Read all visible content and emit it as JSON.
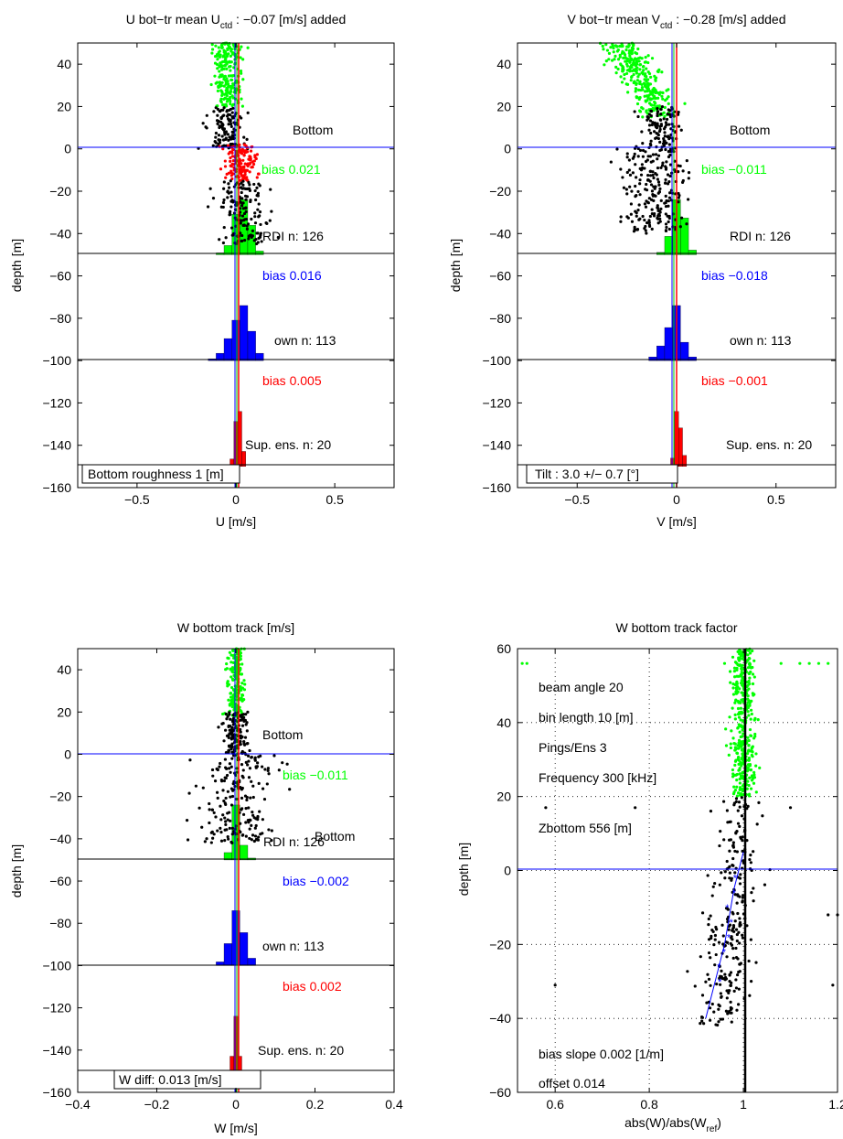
{
  "panels": [
    {
      "id": "u",
      "title_main": "U bot−tr mean U",
      "title_sub": "ctd",
      "title_rest": " : −0.07 [m/s] added",
      "xlabel": "U [m/s]",
      "ylabel": "depth [m]",
      "xlim": [
        -0.8,
        0.8
      ],
      "ylim": [
        -160,
        50
      ],
      "xticks": [
        -0.5,
        0,
        0.5
      ],
      "xticklabels": [
        "−0.5",
        "0",
        "0.5"
      ],
      "yticks": [
        40,
        20,
        0,
        -20,
        -40,
        -60,
        -80,
        -100,
        -120,
        -140,
        -160
      ],
      "yticklabels": [
        "40",
        "20",
        "0",
        "−20",
        "−40",
        "−60",
        "−80",
        "−100",
        "−120",
        "−140",
        "−160"
      ],
      "annotations": {
        "bottom": "Bottom",
        "bias_green": "bias  0.021",
        "rdi_n": "RDI n: 126",
        "bias_blue": "bias  0.016",
        "own_n": "own n: 113",
        "bias_red": "bias  0.005",
        "sup_n": "Sup. ens. n: 20",
        "box_text": "Bottom roughness  1 [m]"
      },
      "colors": {
        "green": "#00ff00",
        "blue": "#0000ff",
        "red": "#ff0000"
      }
    },
    {
      "id": "v",
      "title_main": "V bot−tr mean V",
      "title_sub": "ctd",
      "title_rest": " : −0.28 [m/s] added",
      "xlabel": "V [m/s]",
      "ylabel": "depth [m]",
      "xlim": [
        -0.8,
        0.8
      ],
      "ylim": [
        -160,
        50
      ],
      "xticks": [
        -0.5,
        0,
        0.5
      ],
      "xticklabels": [
        "−0.5",
        "0",
        "0.5"
      ],
      "yticks": [
        40,
        20,
        0,
        -20,
        -40,
        -60,
        -80,
        -100,
        -120,
        -140,
        -160
      ],
      "yticklabels": [
        "40",
        "20",
        "0",
        "−20",
        "−40",
        "−60",
        "−80",
        "−100",
        "−120",
        "−140",
        "−160"
      ],
      "annotations": {
        "bottom": "Bottom",
        "bias_green": "bias −0.011",
        "rdi_n": "RDI n: 126",
        "bias_blue": "bias −0.018",
        "own_n": "own n: 113",
        "bias_red": "bias −0.001",
        "sup_n": "Sup. ens. n: 20",
        "box_text": "Tilt : 3.0 +/− 0.7 [°]"
      }
    },
    {
      "id": "w",
      "title_main": "W bottom track [m/s]",
      "xlabel": "W [m/s]",
      "ylabel": "depth [m]",
      "xlim": [
        -0.4,
        0.4
      ],
      "ylim": [
        -160,
        50
      ],
      "xticks": [
        -0.4,
        -0.2,
        0,
        0.2,
        0.4
      ],
      "xticklabels": [
        "−0.4",
        "−0.2",
        "0",
        "0.2",
        "0.4"
      ],
      "yticks": [
        40,
        20,
        0,
        -20,
        -40,
        -60,
        -80,
        -100,
        -120,
        -140,
        -160
      ],
      "yticklabels": [
        "40",
        "20",
        "0",
        "−20",
        "−40",
        "−60",
        "−80",
        "−100",
        "−120",
        "−140",
        "−160"
      ],
      "annotations": {
        "bottom": "Bottom",
        "bottom2": "Bottom",
        "bias_green": "bias −0.011",
        "rdi_n": "RDI n: 126",
        "bias_blue": "bias −0.002",
        "own_n": "own n: 113",
        "bias_red": "bias  0.002",
        "sup_n": "Sup. ens. n: 20",
        "box_text": "W diff:  0.013 [m/s]"
      }
    },
    {
      "id": "wf",
      "title_main": "W bottom track factor",
      "xlabel_main": "abs(W)/abs(W",
      "xlabel_sub": "ref",
      "xlabel_rest": ")",
      "ylabel": "depth [m]",
      "xlim": [
        0.52,
        1.2
      ],
      "ylim": [
        -60,
        60
      ],
      "xticks": [
        0.6,
        0.8,
        1.0,
        1.2
      ],
      "xticklabels": [
        "0.6",
        "0.8",
        "1",
        "1.2"
      ],
      "yticks": [
        60,
        40,
        20,
        0,
        -20,
        -40,
        -60
      ],
      "yticklabels": [
        "60",
        "40",
        "20",
        "0",
        "−20",
        "−40",
        "−60"
      ],
      "annotations": {
        "beam_angle": "beam angle  20",
        "bin_length": "bin length  10 [m]",
        "pings": "Pings/Ens  3",
        "frequency": "Frequency  300 [kHz]",
        "zbottom": "Zbottom  556 [m]",
        "bias_slope": "bias slope  0.002 [1/m]",
        "offset": "offset    0.014"
      }
    }
  ],
  "chart_data": [
    {
      "type": "bar",
      "title": "U bot−tr mean U_ctd : −0.07 [m/s] added",
      "xlabel": "U [m/s]",
      "ylabel": "depth [m]",
      "xlim": [
        -0.8,
        0.8
      ],
      "ylim": [
        -160,
        50
      ],
      "reference_lines": [
        0,
        -50,
        -100,
        -150
      ],
      "histograms": [
        {
          "name": "RDI",
          "color": "#00ff00",
          "bins_center": [
            -0.08,
            -0.04,
            0.0,
            0.04,
            0.08,
            0.12
          ],
          "heights": [
            1,
            5,
            22,
            30,
            16,
            2
          ],
          "n": 126,
          "bias": 0.021
        },
        {
          "name": "own",
          "color": "#0000ff",
          "bins_center": [
            -0.12,
            -0.08,
            -0.04,
            0.0,
            0.04,
            0.08,
            0.12
          ],
          "heights": [
            1,
            4,
            12,
            22,
            30,
            16,
            4
          ],
          "n": 113,
          "bias": 0.016
        },
        {
          "name": "Sup. ens.",
          "color": "#ff0000",
          "bins_center": [
            -0.02,
            0.0,
            0.02,
            0.04
          ],
          "heights": [
            3,
            18,
            22,
            6
          ],
          "n": 20,
          "bias": 0.005
        }
      ]
    },
    {
      "type": "bar",
      "title": "V bot−tr mean V_ctd : −0.28 [m/s] added",
      "xlabel": "V [m/s]",
      "ylabel": "depth [m]",
      "xlim": [
        -0.8,
        0.8
      ],
      "ylim": [
        -160,
        50
      ],
      "reference_lines": [
        0,
        -50,
        -100,
        -150
      ],
      "histograms": [
        {
          "name": "RDI",
          "color": "#00ff00",
          "bins_center": [
            -0.08,
            -0.04,
            0.0,
            0.04,
            0.08
          ],
          "heights": [
            1,
            8,
            24,
            16,
            2
          ],
          "n": 126,
          "bias": -0.011
        },
        {
          "name": "own",
          "color": "#0000ff",
          "bins_center": [
            -0.12,
            -0.08,
            -0.04,
            0.0,
            0.04,
            0.08
          ],
          "heights": [
            2,
            8,
            18,
            30,
            10,
            2
          ],
          "n": 113,
          "bias": -0.018
        },
        {
          "name": "Sup. ens.",
          "color": "#ff0000",
          "bins_center": [
            -0.02,
            0.0,
            0.02,
            0.04
          ],
          "heights": [
            3,
            20,
            14,
            4
          ],
          "n": 20,
          "bias": -0.001
        }
      ]
    },
    {
      "type": "bar",
      "title": "W bottom track [m/s]",
      "xlabel": "W [m/s]",
      "ylabel": "depth [m]",
      "xlim": [
        -0.4,
        0.4
      ],
      "ylim": [
        -160,
        50
      ],
      "reference_lines": [
        0,
        -50,
        -100,
        -150
      ],
      "histograms": [
        {
          "name": "RDI",
          "color": "#00ff00",
          "bins_center": [
            -0.02,
            0.0,
            0.02,
            0.04
          ],
          "heights": [
            4,
            30,
            8,
            1
          ],
          "n": 126,
          "bias": -0.011
        },
        {
          "name": "own",
          "color": "#0000ff",
          "bins_center": [
            -0.04,
            -0.02,
            0.0,
            0.02,
            0.04
          ],
          "heights": [
            2,
            12,
            30,
            18,
            4
          ],
          "n": 113,
          "bias": -0.002
        },
        {
          "name": "Sup. ens.",
          "color": "#ff0000",
          "bins_center": [
            -0.01,
            0.0,
            0.01
          ],
          "heights": [
            6,
            22,
            6
          ],
          "n": 20,
          "bias": 0.002
        }
      ]
    },
    {
      "type": "scatter",
      "title": "W bottom track factor",
      "xlabel": "abs(W)/abs(W_ref)",
      "ylabel": "depth [m]",
      "xlim": [
        0.52,
        1.2
      ],
      "ylim": [
        -60,
        60
      ],
      "grid": true,
      "series": [
        {
          "name": "green",
          "color": "#00ff00",
          "y_range": [
            20,
            60
          ],
          "x_center": 1.0
        },
        {
          "name": "black",
          "color": "#000000",
          "y_range": [
            -42,
            20
          ],
          "x_center": 0.97
        },
        {
          "name": "blue fit",
          "color": "#0000ff",
          "x": [
            0.92,
            0.96,
            0.98,
            1.0
          ],
          "y": [
            -40,
            -20,
            -5,
            5
          ]
        }
      ]
    }
  ]
}
